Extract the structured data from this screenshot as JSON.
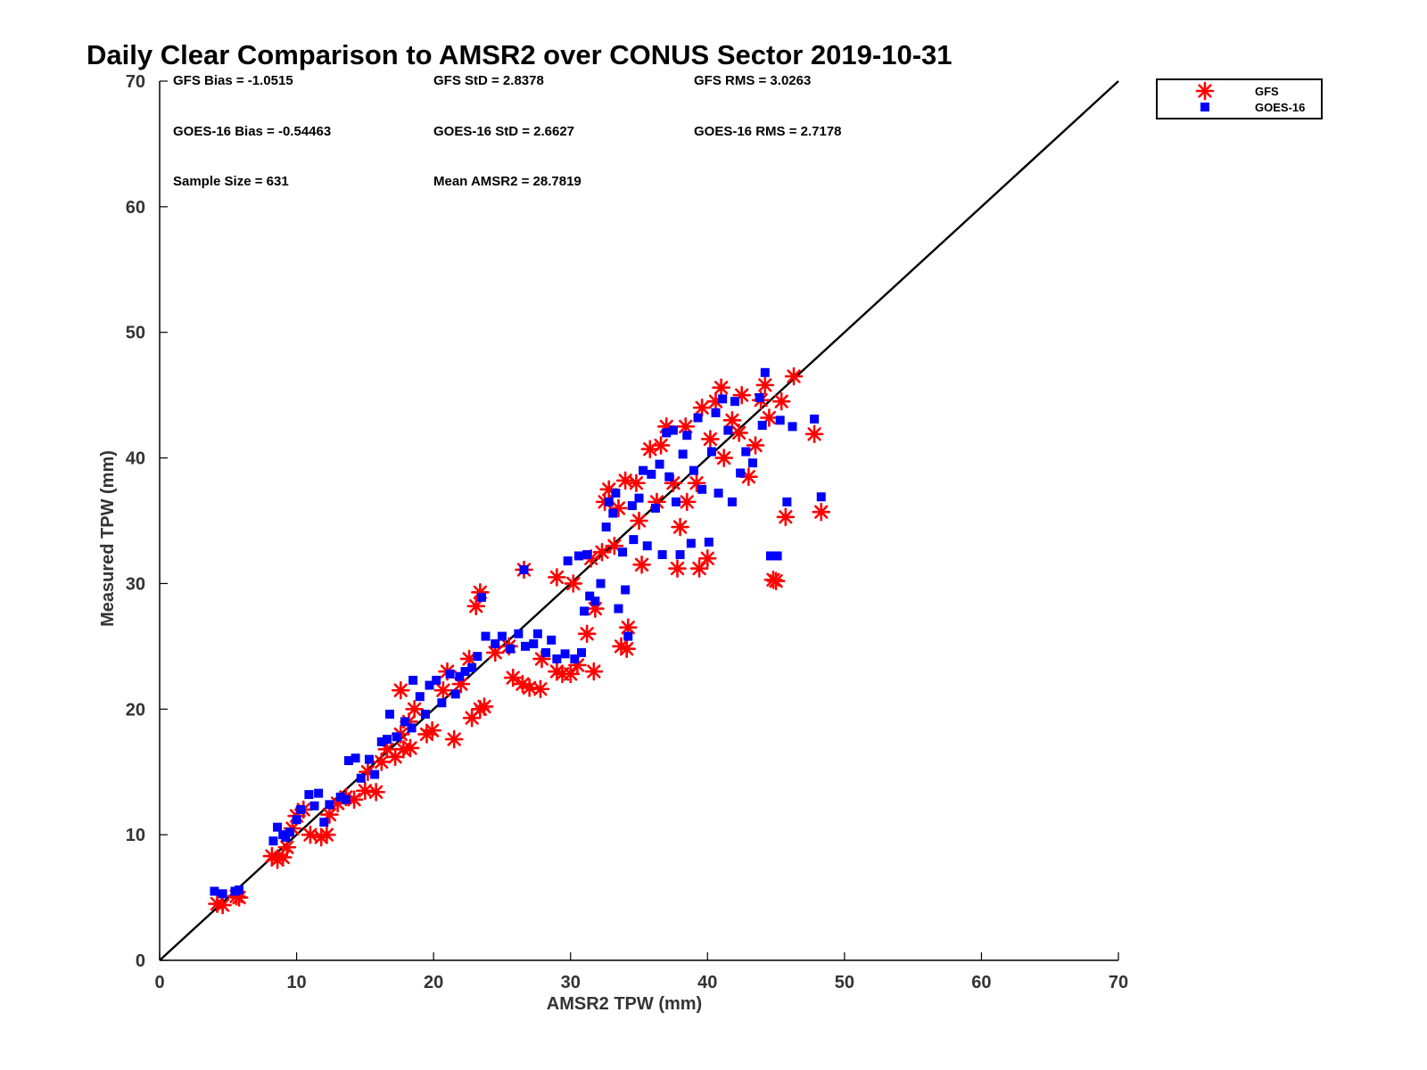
{
  "chart_data": {
    "type": "scatter",
    "title": "Daily Clear Comparison to AMSR2 over CONUS Sector 2019-10-31",
    "xlabel": "AMSR2 TPW (mm)",
    "ylabel": "Measured TPW (mm)",
    "xlim": [
      0,
      70
    ],
    "ylim": [
      0,
      70
    ],
    "x_ticks": [
      "0",
      "10",
      "20",
      "30",
      "40",
      "50",
      "60",
      "70"
    ],
    "y_ticks": [
      "0",
      "10",
      "20",
      "30",
      "40",
      "50",
      "60",
      "70"
    ],
    "grid": false,
    "legend_position": "top-right, outside plot",
    "reference_line": {
      "slope": 1,
      "intercept": 0
    },
    "stats": {
      "gfs_bias": "GFS Bias = -1.0515",
      "gfs_std": "GFS StD = 2.8378",
      "gfs_rms": "GFS RMS = 3.0263",
      "goes_bias": "GOES-16 Bias = -0.54463",
      "goes_std": "GOES-16 StD = 2.6627",
      "goes_rms": "GOES-16 RMS = 2.7178",
      "sample_size": "Sample Size = 631",
      "mean_amsr2": "Mean AMSR2 = 28.7819"
    },
    "series": [
      {
        "name": "GFS",
        "marker": "asterisk",
        "color": "#ff0000",
        "points": [
          [
            4.2,
            4.5
          ],
          [
            4.6,
            4.4
          ],
          [
            5.8,
            5.0
          ],
          [
            5.6,
            5.1
          ],
          [
            8.2,
            8.3
          ],
          [
            8.6,
            8.0
          ],
          [
            9.0,
            8.2
          ],
          [
            9.3,
            9.0
          ],
          [
            9.7,
            10.5
          ],
          [
            10.0,
            11.5
          ],
          [
            10.5,
            12.0
          ],
          [
            11.0,
            10.0
          ],
          [
            11.8,
            9.8
          ],
          [
            12.2,
            10.0
          ],
          [
            12.4,
            11.6
          ],
          [
            13.0,
            12.5
          ],
          [
            13.6,
            13.0
          ],
          [
            14.2,
            12.8
          ],
          [
            15.0,
            13.5
          ],
          [
            15.8,
            13.4
          ],
          [
            15.2,
            15.0
          ],
          [
            16.2,
            15.8
          ],
          [
            16.6,
            16.8
          ],
          [
            17.2,
            16.2
          ],
          [
            17.8,
            16.8
          ],
          [
            18.3,
            16.9
          ],
          [
            17.6,
            18.0
          ],
          [
            18.2,
            19.0
          ],
          [
            17.6,
            21.5
          ],
          [
            18.6,
            20.0
          ],
          [
            19.5,
            18.0
          ],
          [
            19.9,
            18.3
          ],
          [
            20.7,
            21.5
          ],
          [
            21.5,
            17.6
          ],
          [
            22.0,
            22.0
          ],
          [
            21.0,
            23.0
          ],
          [
            22.8,
            19.3
          ],
          [
            23.4,
            20.0
          ],
          [
            23.7,
            20.2
          ],
          [
            22.6,
            24.0
          ],
          [
            23.1,
            28.2
          ],
          [
            23.4,
            29.3
          ],
          [
            24.5,
            24.5
          ],
          [
            25.5,
            25.0
          ],
          [
            25.8,
            22.5
          ],
          [
            26.5,
            22.0
          ],
          [
            27.0,
            21.7
          ],
          [
            27.8,
            21.6
          ],
          [
            27.9,
            24.0
          ],
          [
            26.6,
            31.1
          ],
          [
            29.0,
            23.0
          ],
          [
            29.4,
            22.8
          ],
          [
            30.0,
            22.8
          ],
          [
            30.5,
            23.5
          ],
          [
            31.7,
            23.0
          ],
          [
            29.0,
            30.5
          ],
          [
            30.2,
            30.0
          ],
          [
            31.2,
            26.0
          ],
          [
            31.8,
            28.0
          ],
          [
            31.5,
            32.0
          ],
          [
            32.3,
            32.5
          ],
          [
            32.8,
            37.5
          ],
          [
            32.5,
            36.5
          ],
          [
            33.2,
            33.0
          ],
          [
            33.5,
            36.0
          ],
          [
            33.7,
            25.0
          ],
          [
            34.1,
            24.8
          ],
          [
            34.2,
            26.5
          ],
          [
            34.0,
            38.2
          ],
          [
            34.8,
            38.0
          ],
          [
            35.0,
            35.0
          ],
          [
            35.2,
            31.5
          ],
          [
            35.8,
            40.7
          ],
          [
            36.3,
            36.5
          ],
          [
            36.6,
            41.0
          ],
          [
            37.0,
            42.5
          ],
          [
            37.5,
            38.0
          ],
          [
            37.8,
            31.2
          ],
          [
            38.0,
            34.5
          ],
          [
            38.5,
            36.5
          ],
          [
            38.4,
            42.5
          ],
          [
            39.2,
            38.0
          ],
          [
            39.4,
            31.2
          ],
          [
            39.6,
            44.0
          ],
          [
            40.0,
            32.0
          ],
          [
            40.2,
            41.5
          ],
          [
            40.6,
            44.5
          ],
          [
            41.0,
            45.6
          ],
          [
            41.2,
            40.0
          ],
          [
            41.8,
            43.0
          ],
          [
            42.3,
            42.0
          ],
          [
            42.5,
            45.0
          ],
          [
            43.0,
            38.5
          ],
          [
            43.5,
            41.0
          ],
          [
            43.9,
            44.6
          ],
          [
            44.2,
            45.8
          ],
          [
            44.5,
            43.2
          ],
          [
            44.8,
            30.3
          ],
          [
            45.0,
            30.2
          ],
          [
            45.4,
            44.5
          ],
          [
            45.7,
            35.3
          ],
          [
            46.3,
            46.5
          ],
          [
            47.8,
            41.9
          ],
          [
            48.3,
            35.7
          ]
        ]
      },
      {
        "name": "GOES-16",
        "marker": "square",
        "color": "#0000ff",
        "points": [
          [
            4.0,
            5.5
          ],
          [
            4.6,
            5.3
          ],
          [
            5.8,
            5.6
          ],
          [
            5.5,
            5.5
          ],
          [
            8.3,
            9.5
          ],
          [
            8.6,
            10.6
          ],
          [
            9.0,
            10.0
          ],
          [
            9.2,
            9.8
          ],
          [
            9.5,
            10.2
          ],
          [
            10.0,
            11.2
          ],
          [
            10.3,
            12.0
          ],
          [
            10.9,
            13.2
          ],
          [
            11.3,
            12.3
          ],
          [
            11.6,
            13.3
          ],
          [
            12.0,
            11.0
          ],
          [
            12.4,
            12.4
          ],
          [
            13.2,
            13.0
          ],
          [
            13.6,
            12.8
          ],
          [
            13.8,
            15.9
          ],
          [
            14.3,
            16.1
          ],
          [
            14.7,
            14.5
          ],
          [
            15.3,
            16.0
          ],
          [
            15.7,
            14.8
          ],
          [
            16.2,
            17.4
          ],
          [
            16.6,
            17.6
          ],
          [
            16.8,
            19.6
          ],
          [
            17.3,
            17.8
          ],
          [
            17.9,
            19.0
          ],
          [
            18.4,
            18.5
          ],
          [
            18.5,
            22.3
          ],
          [
            19.0,
            21.0
          ],
          [
            19.4,
            19.6
          ],
          [
            19.7,
            21.9
          ],
          [
            20.2,
            22.3
          ],
          [
            20.6,
            20.5
          ],
          [
            21.2,
            22.8
          ],
          [
            21.6,
            21.2
          ],
          [
            21.9,
            22.6
          ],
          [
            22.3,
            23.0
          ],
          [
            22.8,
            23.3
          ],
          [
            23.2,
            24.2
          ],
          [
            23.5,
            28.9
          ],
          [
            23.8,
            25.8
          ],
          [
            24.5,
            25.2
          ],
          [
            25.0,
            25.8
          ],
          [
            25.6,
            24.8
          ],
          [
            26.2,
            26.0
          ],
          [
            26.6,
            31.1
          ],
          [
            26.7,
            25.0
          ],
          [
            27.3,
            25.2
          ],
          [
            27.6,
            26.0
          ],
          [
            28.2,
            24.5
          ],
          [
            28.6,
            25.5
          ],
          [
            29.0,
            24.0
          ],
          [
            29.6,
            24.4
          ],
          [
            30.3,
            24.0
          ],
          [
            30.8,
            24.5
          ],
          [
            29.8,
            31.8
          ],
          [
            30.6,
            32.2
          ],
          [
            31.2,
            32.3
          ],
          [
            31.0,
            27.8
          ],
          [
            31.4,
            29.0
          ],
          [
            31.8,
            28.6
          ],
          [
            32.2,
            30.0
          ],
          [
            32.6,
            34.5
          ],
          [
            32.8,
            36.5
          ],
          [
            33.1,
            35.6
          ],
          [
            33.3,
            37.2
          ],
          [
            33.5,
            28.0
          ],
          [
            33.8,
            32.5
          ],
          [
            34.0,
            29.5
          ],
          [
            34.2,
            25.8
          ],
          [
            34.5,
            36.2
          ],
          [
            34.6,
            33.5
          ],
          [
            35.0,
            36.8
          ],
          [
            35.3,
            39.0
          ],
          [
            35.6,
            33.0
          ],
          [
            35.9,
            38.7
          ],
          [
            36.2,
            36.0
          ],
          [
            36.5,
            39.5
          ],
          [
            36.7,
            32.3
          ],
          [
            37.0,
            42.0
          ],
          [
            37.2,
            38.5
          ],
          [
            37.5,
            42.2
          ],
          [
            37.7,
            36.5
          ],
          [
            38.0,
            32.3
          ],
          [
            38.2,
            40.3
          ],
          [
            38.5,
            41.8
          ],
          [
            38.8,
            33.2
          ],
          [
            39.0,
            39.0
          ],
          [
            39.3,
            43.2
          ],
          [
            39.6,
            37.5
          ],
          [
            40.1,
            33.3
          ],
          [
            40.3,
            40.5
          ],
          [
            40.6,
            43.6
          ],
          [
            40.8,
            37.2
          ],
          [
            41.1,
            44.7
          ],
          [
            41.5,
            42.2
          ],
          [
            41.8,
            36.5
          ],
          [
            42.0,
            44.5
          ],
          [
            42.4,
            38.8
          ],
          [
            42.8,
            40.5
          ],
          [
            43.3,
            39.6
          ],
          [
            43.8,
            44.8
          ],
          [
            44.0,
            42.6
          ],
          [
            44.2,
            46.8
          ],
          [
            44.6,
            32.2
          ],
          [
            45.1,
            32.2
          ],
          [
            45.3,
            43.0
          ],
          [
            45.8,
            36.5
          ],
          [
            46.2,
            42.5
          ],
          [
            47.8,
            43.1
          ],
          [
            48.3,
            36.9
          ]
        ]
      }
    ]
  }
}
